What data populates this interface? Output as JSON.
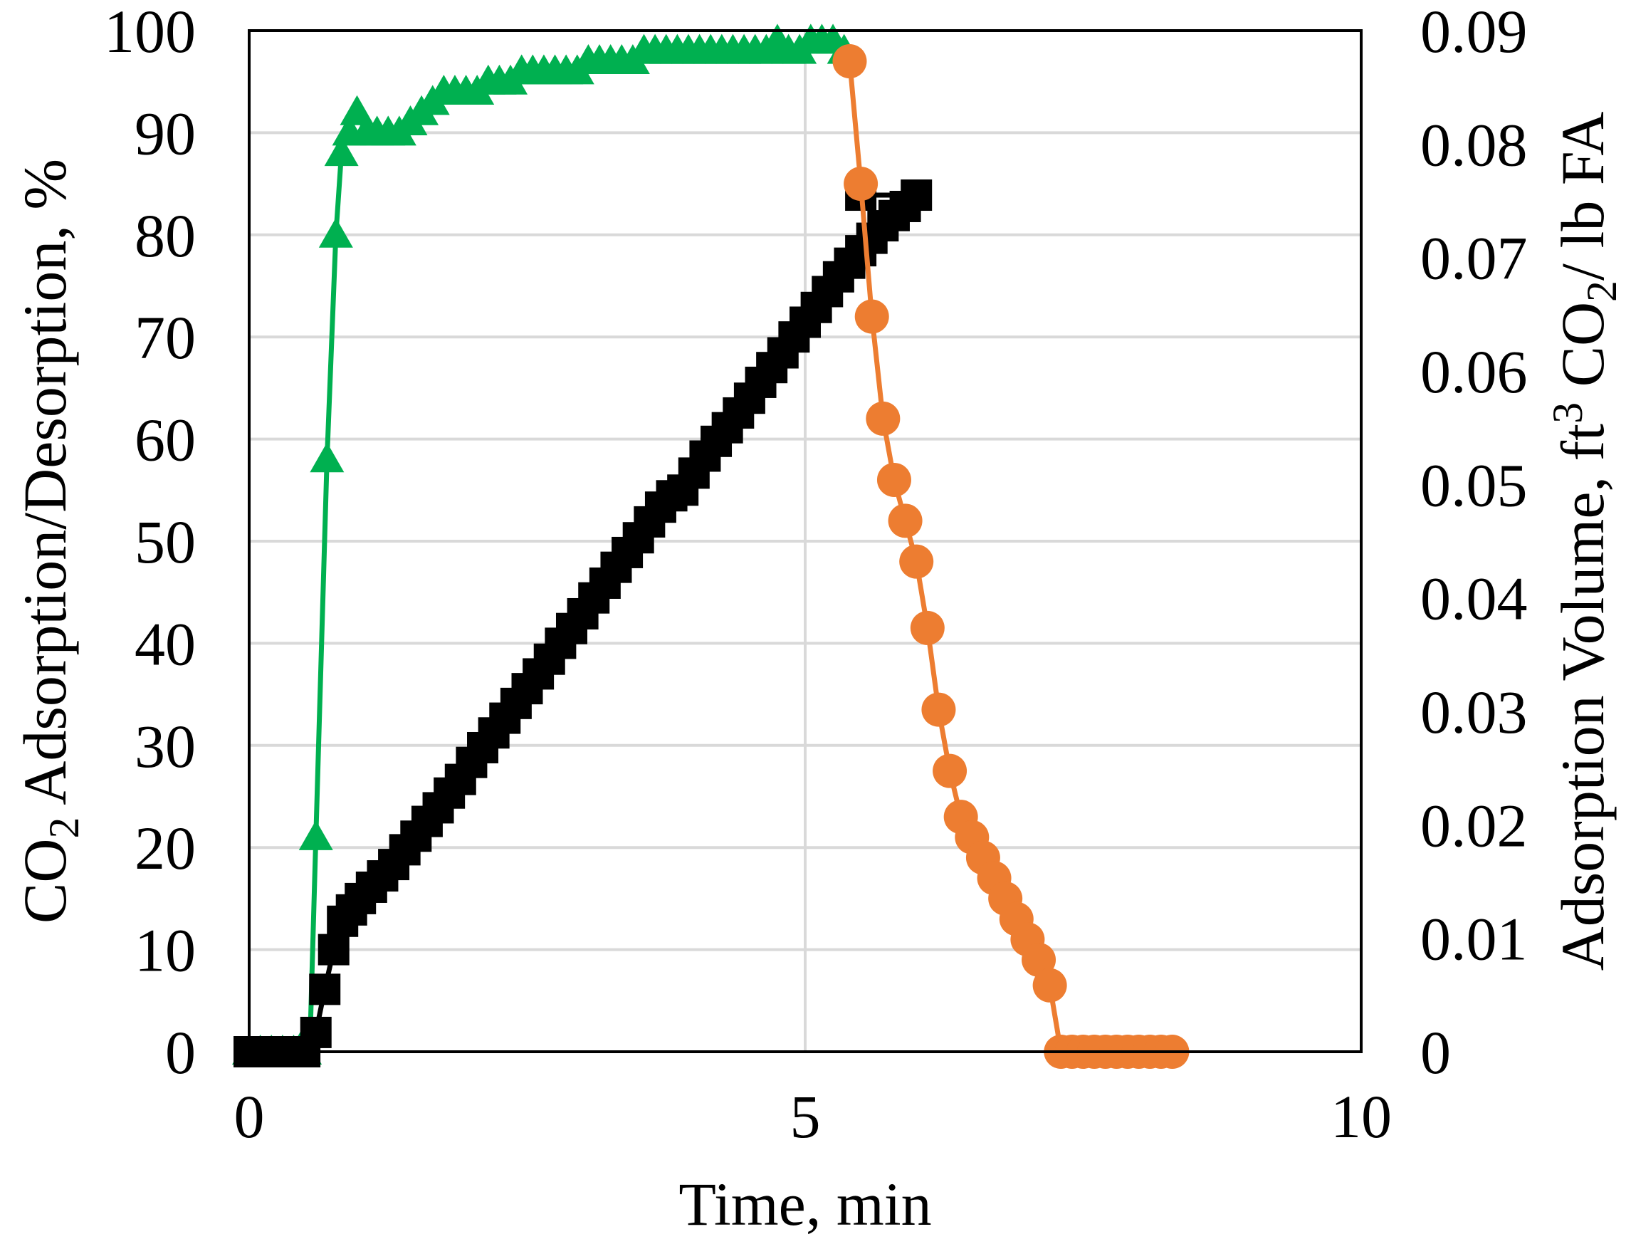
{
  "chart_data": {
    "type": "line",
    "xlabel": "Time, min",
    "ylabel_left": {
      "main": "CO",
      "sub": "2",
      "rest": " Adsorption/Desorption, %"
    },
    "ylabel_right": {
      "a": "Adsorption Volume, ft",
      "sup": "3",
      "b": " CO",
      "sub": "2",
      "c": "/ lb FA"
    },
    "xlim": [
      0,
      10
    ],
    "ylim_left": [
      0,
      100
    ],
    "ylim_right": [
      0,
      0.09
    ],
    "x_ticks": [
      "0",
      "5",
      "10"
    ],
    "y_left_ticks": [
      "0",
      "10",
      "20",
      "30",
      "40",
      "50",
      "60",
      "70",
      "80",
      "90",
      "100"
    ],
    "y_right_ticks": [
      "0",
      "0.01",
      "0.02",
      "0.03",
      "0.04",
      "0.05",
      "0.06",
      "0.07",
      "0.08",
      "0.09"
    ],
    "grid": true,
    "legend": "none",
    "series": [
      {
        "axis": "left",
        "marker": "triangle",
        "color": "#00b050",
        "points": [
          [
            0.0,
            0
          ],
          [
            0.1,
            0
          ],
          [
            0.2,
            0
          ],
          [
            0.3,
            0
          ],
          [
            0.4,
            0
          ],
          [
            0.5,
            0
          ],
          [
            0.55,
            2
          ],
          [
            0.6,
            21
          ],
          [
            0.7,
            58
          ],
          [
            0.78,
            80
          ],
          [
            0.83,
            88
          ],
          [
            0.9,
            90
          ],
          [
            0.97,
            92
          ],
          [
            1.05,
            90
          ],
          [
            1.15,
            90
          ],
          [
            1.25,
            90
          ],
          [
            1.35,
            90
          ],
          [
            1.45,
            91
          ],
          [
            1.55,
            92
          ],
          [
            1.65,
            93
          ],
          [
            1.75,
            94
          ],
          [
            1.85,
            94
          ],
          [
            1.95,
            94
          ],
          [
            2.05,
            94
          ],
          [
            2.15,
            95
          ],
          [
            2.25,
            95
          ],
          [
            2.35,
            95
          ],
          [
            2.45,
            96
          ],
          [
            2.55,
            96
          ],
          [
            2.65,
            96
          ],
          [
            2.75,
            96
          ],
          [
            2.85,
            96
          ],
          [
            2.95,
            96
          ],
          [
            3.05,
            97
          ],
          [
            3.15,
            97
          ],
          [
            3.25,
            97
          ],
          [
            3.35,
            97
          ],
          [
            3.45,
            97
          ],
          [
            3.55,
            98
          ],
          [
            3.65,
            98
          ],
          [
            3.75,
            98
          ],
          [
            3.85,
            98
          ],
          [
            3.95,
            98
          ],
          [
            4.05,
            98
          ],
          [
            4.15,
            98
          ],
          [
            4.25,
            98
          ],
          [
            4.35,
            98
          ],
          [
            4.45,
            98
          ],
          [
            4.55,
            98
          ],
          [
            4.65,
            98
          ],
          [
            4.75,
            99
          ],
          [
            4.85,
            98
          ],
          [
            4.95,
            98
          ],
          [
            5.05,
            99
          ],
          [
            5.15,
            99
          ],
          [
            5.25,
            99
          ],
          [
            5.35,
            98
          ]
        ]
      },
      {
        "axis": "right",
        "marker": "square",
        "color": "#000000",
        "points": [
          [
            0.0,
            0
          ],
          [
            0.1,
            0
          ],
          [
            0.2,
            0
          ],
          [
            0.3,
            0
          ],
          [
            0.4,
            0
          ],
          [
            0.5,
            0
          ],
          [
            0.6,
            0.0017
          ],
          [
            0.68,
            0.0055
          ],
          [
            0.76,
            0.009
          ],
          [
            0.84,
            0.0115
          ],
          [
            0.92,
            0.0125
          ],
          [
            1.0,
            0.0135
          ],
          [
            1.1,
            0.0145
          ],
          [
            1.2,
            0.0155
          ],
          [
            1.3,
            0.0165
          ],
          [
            1.4,
            0.0178
          ],
          [
            1.5,
            0.019
          ],
          [
            1.6,
            0.0203
          ],
          [
            1.7,
            0.0215
          ],
          [
            1.8,
            0.0228
          ],
          [
            1.9,
            0.024
          ],
          [
            2.0,
            0.0255
          ],
          [
            2.1,
            0.0268
          ],
          [
            2.2,
            0.0281
          ],
          [
            2.3,
            0.0294
          ],
          [
            2.4,
            0.0307
          ],
          [
            2.5,
            0.032
          ],
          [
            2.6,
            0.0333
          ],
          [
            2.7,
            0.0346
          ],
          [
            2.8,
            0.036
          ],
          [
            2.9,
            0.0373
          ],
          [
            3.0,
            0.0386
          ],
          [
            3.1,
            0.04
          ],
          [
            3.2,
            0.0413
          ],
          [
            3.3,
            0.0427
          ],
          [
            3.4,
            0.044
          ],
          [
            3.5,
            0.0453
          ],
          [
            3.6,
            0.0467
          ],
          [
            3.7,
            0.048
          ],
          [
            3.8,
            0.049
          ],
          [
            3.9,
            0.0495
          ],
          [
            4.0,
            0.051
          ],
          [
            4.1,
            0.0525
          ],
          [
            4.2,
            0.0538
          ],
          [
            4.3,
            0.055
          ],
          [
            4.4,
            0.0563
          ],
          [
            4.5,
            0.0576
          ],
          [
            4.6,
            0.059
          ],
          [
            4.7,
            0.0603
          ],
          [
            4.8,
            0.0616
          ],
          [
            4.9,
            0.063
          ],
          [
            5.0,
            0.0643
          ],
          [
            5.1,
            0.0656
          ],
          [
            5.2,
            0.067
          ],
          [
            5.3,
            0.0683
          ],
          [
            5.4,
            0.0695
          ],
          [
            5.5,
            0.0706
          ],
          [
            5.6,
            0.0717
          ],
          [
            5.7,
            0.0728
          ],
          [
            5.8,
            0.0737
          ],
          [
            5.9,
            0.0745
          ],
          [
            6.0,
            0.0755
          ],
          [
            5.5,
            0.0755
          ]
        ]
      },
      {
        "axis": "left",
        "marker": "circle",
        "color": "#ed7d31",
        "points": [
          [
            5.4,
            97
          ],
          [
            5.5,
            85
          ],
          [
            5.6,
            72
          ],
          [
            5.7,
            62
          ],
          [
            5.8,
            56
          ],
          [
            5.9,
            52
          ],
          [
            6.0,
            48
          ],
          [
            6.1,
            41.5
          ],
          [
            6.2,
            33.5
          ],
          [
            6.3,
            27.5
          ],
          [
            6.4,
            23
          ],
          [
            6.5,
            21
          ],
          [
            6.6,
            19
          ],
          [
            6.7,
            17
          ],
          [
            6.8,
            15
          ],
          [
            6.9,
            13
          ],
          [
            7.0,
            11
          ],
          [
            7.1,
            9
          ],
          [
            7.2,
            6.5
          ],
          [
            7.3,
            0
          ],
          [
            7.4,
            0
          ],
          [
            7.5,
            0
          ],
          [
            7.6,
            0
          ],
          [
            7.7,
            0
          ],
          [
            7.8,
            0
          ],
          [
            7.9,
            0
          ],
          [
            8.0,
            0
          ],
          [
            8.1,
            0
          ],
          [
            8.2,
            0
          ],
          [
            8.3,
            0
          ]
        ]
      }
    ]
  }
}
